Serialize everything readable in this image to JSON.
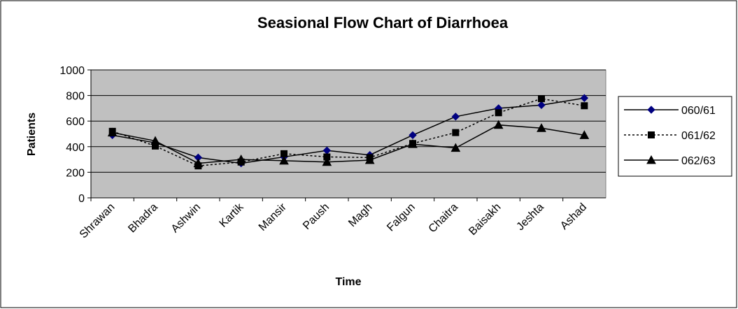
{
  "chart_data": {
    "type": "line",
    "title": "Seasional Flow Chart of Diarrhoea",
    "xlabel": "Time",
    "ylabel": "Patients",
    "categories": [
      "Shrawan",
      "Bhadra",
      "Ashwin",
      "Kartik",
      "Mansir",
      "Paush",
      "Magh",
      "Falgun",
      "Chaitra",
      "Baisakh",
      "Jeshta",
      "Ashad"
    ],
    "series": [
      {
        "name": "060/61",
        "color": "#000080",
        "marker": "diamond",
        "dash": "solid",
        "values": [
          490,
          430,
          315,
          270,
          320,
          370,
          335,
          490,
          635,
          700,
          725,
          780
        ]
      },
      {
        "name": "061/62",
        "color": "#000000",
        "marker": "square",
        "dash": "dotted",
        "values": [
          520,
          405,
          250,
          280,
          345,
          320,
          315,
          425,
          510,
          665,
          775,
          720
        ]
      },
      {
        "name": "062/63",
        "color": "#000000",
        "marker": "triangle",
        "dash": "solid",
        "values": [
          510,
          445,
          270,
          300,
          290,
          280,
          295,
          420,
          390,
          570,
          545,
          490
        ]
      }
    ],
    "ylim": [
      0,
      1000
    ],
    "yticks": [
      0,
      200,
      400,
      600,
      800,
      1000
    ],
    "grid": true,
    "legend": "right"
  }
}
